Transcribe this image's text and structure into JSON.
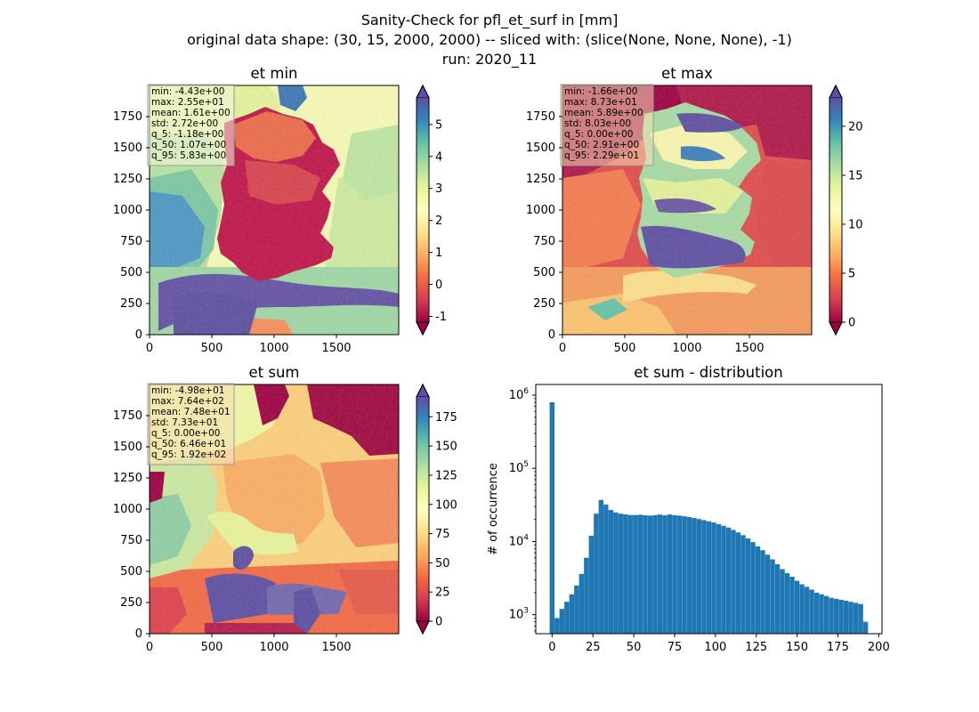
{
  "figure": {
    "title_lines": [
      "Sanity-Check for pfl_et_surf in [mm]",
      "original data shape: (30, 15, 2000, 2000) -- sliced with: (slice(None, None, None), -1)",
      "run: 2020_11"
    ]
  },
  "colormap": {
    "name": "Spectral",
    "stops": [
      "#9e0142",
      "#d53e4f",
      "#f46d43",
      "#fdae61",
      "#fee08b",
      "#ffffbf",
      "#e6f598",
      "#abdda4",
      "#66c2a5",
      "#3288bd",
      "#5e4fa2"
    ]
  },
  "chart_data": [
    {
      "type": "heatmap",
      "title": "et min",
      "x_ticks": [
        "0",
        "500",
        "1000",
        "1500"
      ],
      "y_ticks": [
        "0",
        "250",
        "500",
        "750",
        "1000",
        "1250",
        "1500",
        "1750"
      ],
      "xlim": [
        0,
        2000
      ],
      "ylim": [
        0,
        2000
      ],
      "colorbar": {
        "min": -1.18,
        "max": 5.83,
        "ticks": [
          "-1",
          "0",
          "1",
          "2",
          "3",
          "4",
          "5"
        ],
        "extend": "both"
      },
      "stats": [
        "min: -4.43e+00",
        "max: 2.55e+01",
        "mean: 1.61e+00",
        "std: 2.72e+00",
        "q_5: -1.18e+00",
        "q_50: 1.07e+00",
        "q_95: 5.83e+00"
      ],
      "stats_box_color": "#f5f5dc"
    },
    {
      "type": "heatmap",
      "title": "et max",
      "x_ticks": [
        "0",
        "500",
        "1000",
        "1500"
      ],
      "y_ticks": [
        "0",
        "250",
        "500",
        "750",
        "1000",
        "1250",
        "1500",
        "1750"
      ],
      "xlim": [
        0,
        2000
      ],
      "ylim": [
        0,
        2000
      ],
      "colorbar": {
        "min": 0.0,
        "max": 22.9,
        "ticks": [
          "0",
          "5",
          "10",
          "15",
          "20"
        ],
        "extend": "both"
      },
      "stats": [
        "min: -1.66e+00",
        "max: 8.73e+01",
        "mean: 5.89e+00",
        "std: 8.03e+00",
        "q_5: 0.00e+00",
        "q_50: 2.91e+00",
        "q_95: 2.29e+01"
      ],
      "stats_box_color": "#f5deb3"
    },
    {
      "type": "heatmap",
      "title": "et sum",
      "x_ticks": [
        "0",
        "500",
        "1000",
        "1500"
      ],
      "y_ticks": [
        "0",
        "250",
        "500",
        "750",
        "1000",
        "1250",
        "1500",
        "1750"
      ],
      "xlim": [
        0,
        2000
      ],
      "ylim": [
        0,
        2000
      ],
      "colorbar": {
        "min": 0.0,
        "max": 192,
        "ticks": [
          "0",
          "25",
          "50",
          "75",
          "100",
          "125",
          "150",
          "175"
        ],
        "extend": "both"
      },
      "stats": [
        "min: -4.98e+01",
        "max: 7.64e+02",
        "mean: 7.48e+01",
        "std: 7.33e+01",
        "q_5: 0.00e+00",
        "q_50: 6.46e+01",
        "q_95: 1.92e+02"
      ],
      "stats_box_color": "#f5deb3"
    },
    {
      "type": "bar",
      "title": "et sum - distribution",
      "ylabel": "# of occurrence",
      "yscale": "log",
      "x_ticks": [
        "0",
        "25",
        "50",
        "75",
        "100",
        "125",
        "150",
        "175",
        "200"
      ],
      "y_ticks": [
        "10^3",
        "10^4",
        "10^5",
        "10^6"
      ],
      "xlim": [
        -10,
        202
      ],
      "ylim": [
        550,
        1400000
      ],
      "bar_color": "#1f77b4",
      "bins": {
        "x": [
          0,
          3,
          6,
          9,
          12,
          15,
          18,
          21,
          24,
          27,
          30,
          33,
          36,
          39,
          42,
          45,
          48,
          51,
          54,
          57,
          60,
          63,
          66,
          69,
          72,
          75,
          78,
          81,
          84,
          87,
          90,
          93,
          96,
          99,
          102,
          105,
          108,
          111,
          114,
          117,
          120,
          123,
          126,
          129,
          132,
          135,
          138,
          141,
          144,
          147,
          150,
          153,
          156,
          159,
          162,
          165,
          168,
          171,
          174,
          177,
          180,
          183,
          186,
          189,
          192
        ],
        "values": [
          800000,
          900,
          1200,
          1500,
          1900,
          2500,
          3600,
          6000,
          12000,
          24000,
          37000,
          32000,
          27000,
          25000,
          24000,
          23500,
          23000,
          23000,
          23200,
          22800,
          22600,
          22900,
          23300,
          22800,
          23400,
          22900,
          22600,
          22100,
          21600,
          21000,
          20300,
          19600,
          18900,
          18200,
          17300,
          16400,
          15500,
          14400,
          13300,
          12200,
          11000,
          9800,
          8600,
          7600,
          6600,
          5700,
          4900,
          4200,
          3700,
          3300,
          2900,
          2600,
          2400,
          2200,
          2000,
          1900,
          1800,
          1700,
          1650,
          1600,
          1550,
          1500,
          1450,
          1400,
          800
        ]
      }
    }
  ]
}
